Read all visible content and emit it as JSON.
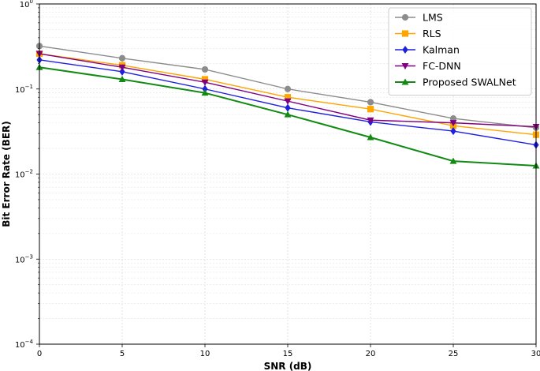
{
  "chart_data": {
    "type": "line",
    "title": "",
    "xlabel": "SNR (dB)",
    "ylabel": "Bit Error Rate (BER)",
    "yscale": "log",
    "xlim": [
      0,
      30
    ],
    "ylim": [
      0.0001,
      1
    ],
    "x": [
      0,
      5,
      10,
      15,
      20,
      25,
      30
    ],
    "x_ticks": [
      "0",
      "5",
      "10",
      "15",
      "20",
      "25",
      "30"
    ],
    "y_ticks": [
      {
        "base": "10",
        "exp": "0",
        "value": 1
      },
      {
        "base": "10",
        "exp": "−1",
        "value": 0.1
      },
      {
        "base": "10",
        "exp": "−2",
        "value": 0.01
      },
      {
        "base": "10",
        "exp": "−3",
        "value": 0.001
      },
      {
        "base": "10",
        "exp": "−4",
        "value": 0.0001
      }
    ],
    "grid": true,
    "legend_position": "top-right",
    "series": [
      {
        "name": "LMS",
        "color": "#8c8c8c",
        "marker": "circle",
        "values": [
          0.32,
          0.23,
          0.17,
          0.1,
          0.07,
          0.045,
          0.035
        ]
      },
      {
        "name": "RLS",
        "color": "#ffa500",
        "marker": "square",
        "values": [
          0.26,
          0.19,
          0.13,
          0.08,
          0.058,
          0.037,
          0.029
        ]
      },
      {
        "name": "Kalman",
        "color": "#1f1fe0",
        "marker": "diamond",
        "values": [
          0.22,
          0.16,
          0.1,
          0.06,
          0.041,
          0.032,
          0.022
        ]
      },
      {
        "name": "FC-DNN",
        "color": "#800080",
        "marker": "triangle-down",
        "values": [
          0.26,
          0.18,
          0.12,
          0.072,
          0.043,
          0.04,
          0.036
        ]
      },
      {
        "name": "Proposed SWALNet",
        "color": "#138a13",
        "marker": "triangle-up",
        "values": [
          0.18,
          0.13,
          0.09,
          0.05,
          0.027,
          0.0142,
          0.0125
        ]
      }
    ]
  }
}
